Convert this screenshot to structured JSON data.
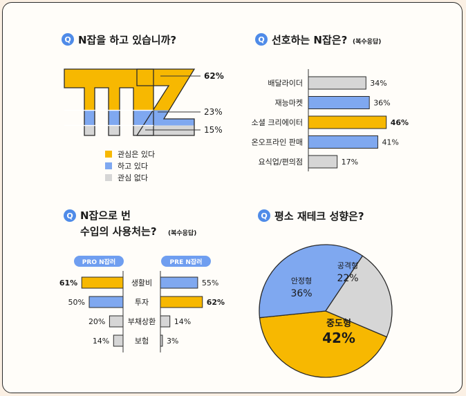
{
  "colors": {
    "yellow": "#f7b801",
    "blue": "#7fa8f0",
    "gray": "#d6d6d6",
    "qbadge": "#4f8be8",
    "pill": "#6f9ef0",
    "outline": "#2a2a2a"
  },
  "q_badge": "Q",
  "panels": {
    "mz": {
      "title": "N잡을 하고 있습니까?",
      "chart_data": {
        "type": "bar",
        "categories": [
          "관심은 있다",
          "하고 있다",
          "관심 없다"
        ],
        "values": [
          62,
          23,
          15
        ],
        "value_labels": [
          "62%",
          "23%",
          "15%"
        ],
        "legend": [
          "관심은 있다",
          "하고 있다",
          "관심 없다"
        ],
        "legend_position": "bottom-left"
      }
    },
    "preferred": {
      "title": "선호하는 N잡은?",
      "subtitle": "(복수응답)",
      "chart_data": {
        "type": "bar",
        "categories": [
          "배달라이더",
          "재능마켓",
          "소셜 크리에이터",
          "온오프라인 판매",
          "요식업/편의점"
        ],
        "values": [
          34,
          36,
          46,
          41,
          17
        ],
        "value_labels": [
          "34%",
          "36%",
          "46%",
          "41%",
          "17%"
        ]
      }
    },
    "usage": {
      "title_line1": "N잡으로 번",
      "title_line2": "수입의 사용처는?",
      "subtitle": "(복수응답)",
      "chart_data": {
        "type": "bar",
        "categories": [
          "생활비",
          "투자",
          "부채상환",
          "보험"
        ],
        "series": [
          {
            "name": "PRO N잡러",
            "values": [
              61,
              50,
              20,
              14
            ],
            "value_labels": [
              "61%",
              "50%",
              "20%",
              "14%"
            ]
          },
          {
            "name": "PRE N잡러",
            "values": [
              55,
              62,
              14,
              3
            ],
            "value_labels": [
              "55%",
              "62%",
              "14%",
              "3%"
            ]
          }
        ]
      }
    },
    "invest": {
      "title": "평소 재테크 성향은?",
      "chart_data": {
        "type": "pie",
        "slices": [
          {
            "label": "중도형",
            "value": 42,
            "value_label": "42%"
          },
          {
            "label": "안정형",
            "value": 36,
            "value_label": "36%"
          },
          {
            "label": "공격형",
            "value": 22,
            "value_label": "22%"
          }
        ]
      }
    }
  }
}
